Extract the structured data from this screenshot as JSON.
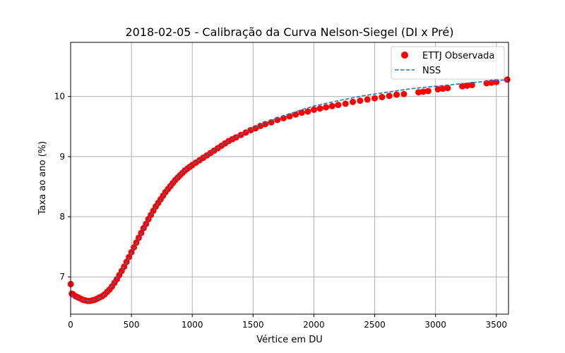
{
  "chart_data": {
    "type": "scatter",
    "title": "2018-02-05 - Calibração da Curva Nelson-Siegel (DI x Pré)",
    "xlabel": "Vértice em DU",
    "ylabel": "Taxa ao ano (%)",
    "xlim": [
      0,
      3600
    ],
    "ylim": [
      6.38,
      10.9
    ],
    "xticks": [
      0,
      500,
      1000,
      1500,
      2000,
      2500,
      3000,
      3500
    ],
    "xtick_labels": [
      "0",
      "500",
      "1000",
      "1500",
      "2000",
      "2500",
      "3000",
      "3500"
    ],
    "yticks": [
      7,
      8,
      9,
      10
    ],
    "ytick_labels": [
      "7",
      "8",
      "9",
      "10"
    ],
    "grid": true,
    "legend": "top-right",
    "series": [
      {
        "name": "ETTJ Observada",
        "style": "scatter",
        "color": "#ff0000",
        "points": [
          [
            1,
            6.88
          ],
          [
            10,
            6.72
          ],
          [
            20,
            6.71
          ],
          [
            40,
            6.68
          ],
          [
            60,
            6.66
          ],
          [
            80,
            6.64
          ],
          [
            100,
            6.62
          ],
          [
            120,
            6.61
          ],
          [
            140,
            6.6
          ],
          [
            160,
            6.6
          ],
          [
            180,
            6.61
          ],
          [
            200,
            6.62
          ],
          [
            220,
            6.64
          ],
          [
            240,
            6.66
          ],
          [
            260,
            6.68
          ],
          [
            280,
            6.71
          ],
          [
            300,
            6.75
          ],
          [
            320,
            6.79
          ],
          [
            340,
            6.84
          ],
          [
            360,
            6.9
          ],
          [
            380,
            6.96
          ],
          [
            400,
            7.03
          ],
          [
            420,
            7.1
          ],
          [
            440,
            7.17
          ],
          [
            460,
            7.25
          ],
          [
            480,
            7.33
          ],
          [
            500,
            7.41
          ],
          [
            520,
            7.49
          ],
          [
            540,
            7.57
          ],
          [
            560,
            7.65
          ],
          [
            580,
            7.73
          ],
          [
            600,
            7.81
          ],
          [
            620,
            7.88
          ],
          [
            640,
            7.96
          ],
          [
            660,
            8.03
          ],
          [
            680,
            8.1
          ],
          [
            700,
            8.17
          ],
          [
            720,
            8.23
          ],
          [
            740,
            8.29
          ],
          [
            760,
            8.35
          ],
          [
            780,
            8.41
          ],
          [
            800,
            8.46
          ],
          [
            820,
            8.51
          ],
          [
            840,
            8.56
          ],
          [
            860,
            8.61
          ],
          [
            880,
            8.65
          ],
          [
            900,
            8.69
          ],
          [
            920,
            8.73
          ],
          [
            940,
            8.77
          ],
          [
            960,
            8.8
          ],
          [
            980,
            8.83
          ],
          [
            1000,
            8.86
          ],
          [
            1030,
            8.9
          ],
          [
            1060,
            8.94
          ],
          [
            1090,
            8.98
          ],
          [
            1120,
            9.02
          ],
          [
            1150,
            9.06
          ],
          [
            1180,
            9.1
          ],
          [
            1210,
            9.14
          ],
          [
            1240,
            9.18
          ],
          [
            1270,
            9.22
          ],
          [
            1300,
            9.26
          ],
          [
            1330,
            9.29
          ],
          [
            1360,
            9.32
          ],
          [
            1400,
            9.36
          ],
          [
            1440,
            9.4
          ],
          [
            1480,
            9.44
          ],
          [
            1520,
            9.47
          ],
          [
            1560,
            9.51
          ],
          [
            1600,
            9.54
          ],
          [
            1650,
            9.57
          ],
          [
            1700,
            9.61
          ],
          [
            1750,
            9.64
          ],
          [
            1800,
            9.67
          ],
          [
            1850,
            9.7
          ],
          [
            1900,
            9.73
          ],
          [
            1950,
            9.75
          ],
          [
            2000,
            9.78
          ],
          [
            2050,
            9.8
          ],
          [
            2100,
            9.82
          ],
          [
            2150,
            9.84
          ],
          [
            2200,
            9.86
          ],
          [
            2260,
            9.88
          ],
          [
            2320,
            9.91
          ],
          [
            2380,
            9.93
          ],
          [
            2440,
            9.95
          ],
          [
            2500,
            9.97
          ],
          [
            2560,
            9.99
          ],
          [
            2620,
            10.01
          ],
          [
            2680,
            10.03
          ],
          [
            2740,
            10.04
          ],
          [
            2860,
            10.07
          ],
          [
            2900,
            10.08
          ],
          [
            2940,
            10.09
          ],
          [
            3020,
            10.12
          ],
          [
            3060,
            10.13
          ],
          [
            3100,
            10.14
          ],
          [
            3220,
            10.17
          ],
          [
            3260,
            10.18
          ],
          [
            3300,
            10.19
          ],
          [
            3420,
            10.22
          ],
          [
            3460,
            10.23
          ],
          [
            3500,
            10.24
          ],
          [
            3590,
            10.28
          ]
        ]
      },
      {
        "name": "NSS",
        "style": "dashed-line",
        "color": "#1f77b4",
        "points": [
          [
            0,
            6.7
          ],
          [
            50,
            6.66
          ],
          [
            100,
            6.62
          ],
          [
            150,
            6.6
          ],
          [
            200,
            6.62
          ],
          [
            250,
            6.66
          ],
          [
            300,
            6.75
          ],
          [
            350,
            6.88
          ],
          [
            400,
            7.03
          ],
          [
            450,
            7.21
          ],
          [
            500,
            7.4
          ],
          [
            550,
            7.59
          ],
          [
            600,
            7.8
          ],
          [
            650,
            7.98
          ],
          [
            700,
            8.16
          ],
          [
            750,
            8.32
          ],
          [
            800,
            8.46
          ],
          [
            850,
            8.59
          ],
          [
            900,
            8.7
          ],
          [
            950,
            8.79
          ],
          [
            1000,
            8.87
          ],
          [
            1100,
            9.0
          ],
          [
            1200,
            9.13
          ],
          [
            1300,
            9.26
          ],
          [
            1400,
            9.37
          ],
          [
            1500,
            9.47
          ],
          [
            1600,
            9.56
          ],
          [
            1700,
            9.64
          ],
          [
            1800,
            9.71
          ],
          [
            1900,
            9.78
          ],
          [
            2000,
            9.84
          ],
          [
            2200,
            9.93
          ],
          [
            2400,
            10.01
          ],
          [
            2600,
            10.07
          ],
          [
            2800,
            10.13
          ],
          [
            3000,
            10.17
          ],
          [
            3200,
            10.21
          ],
          [
            3400,
            10.25
          ],
          [
            3600,
            10.28
          ]
        ]
      }
    ]
  }
}
